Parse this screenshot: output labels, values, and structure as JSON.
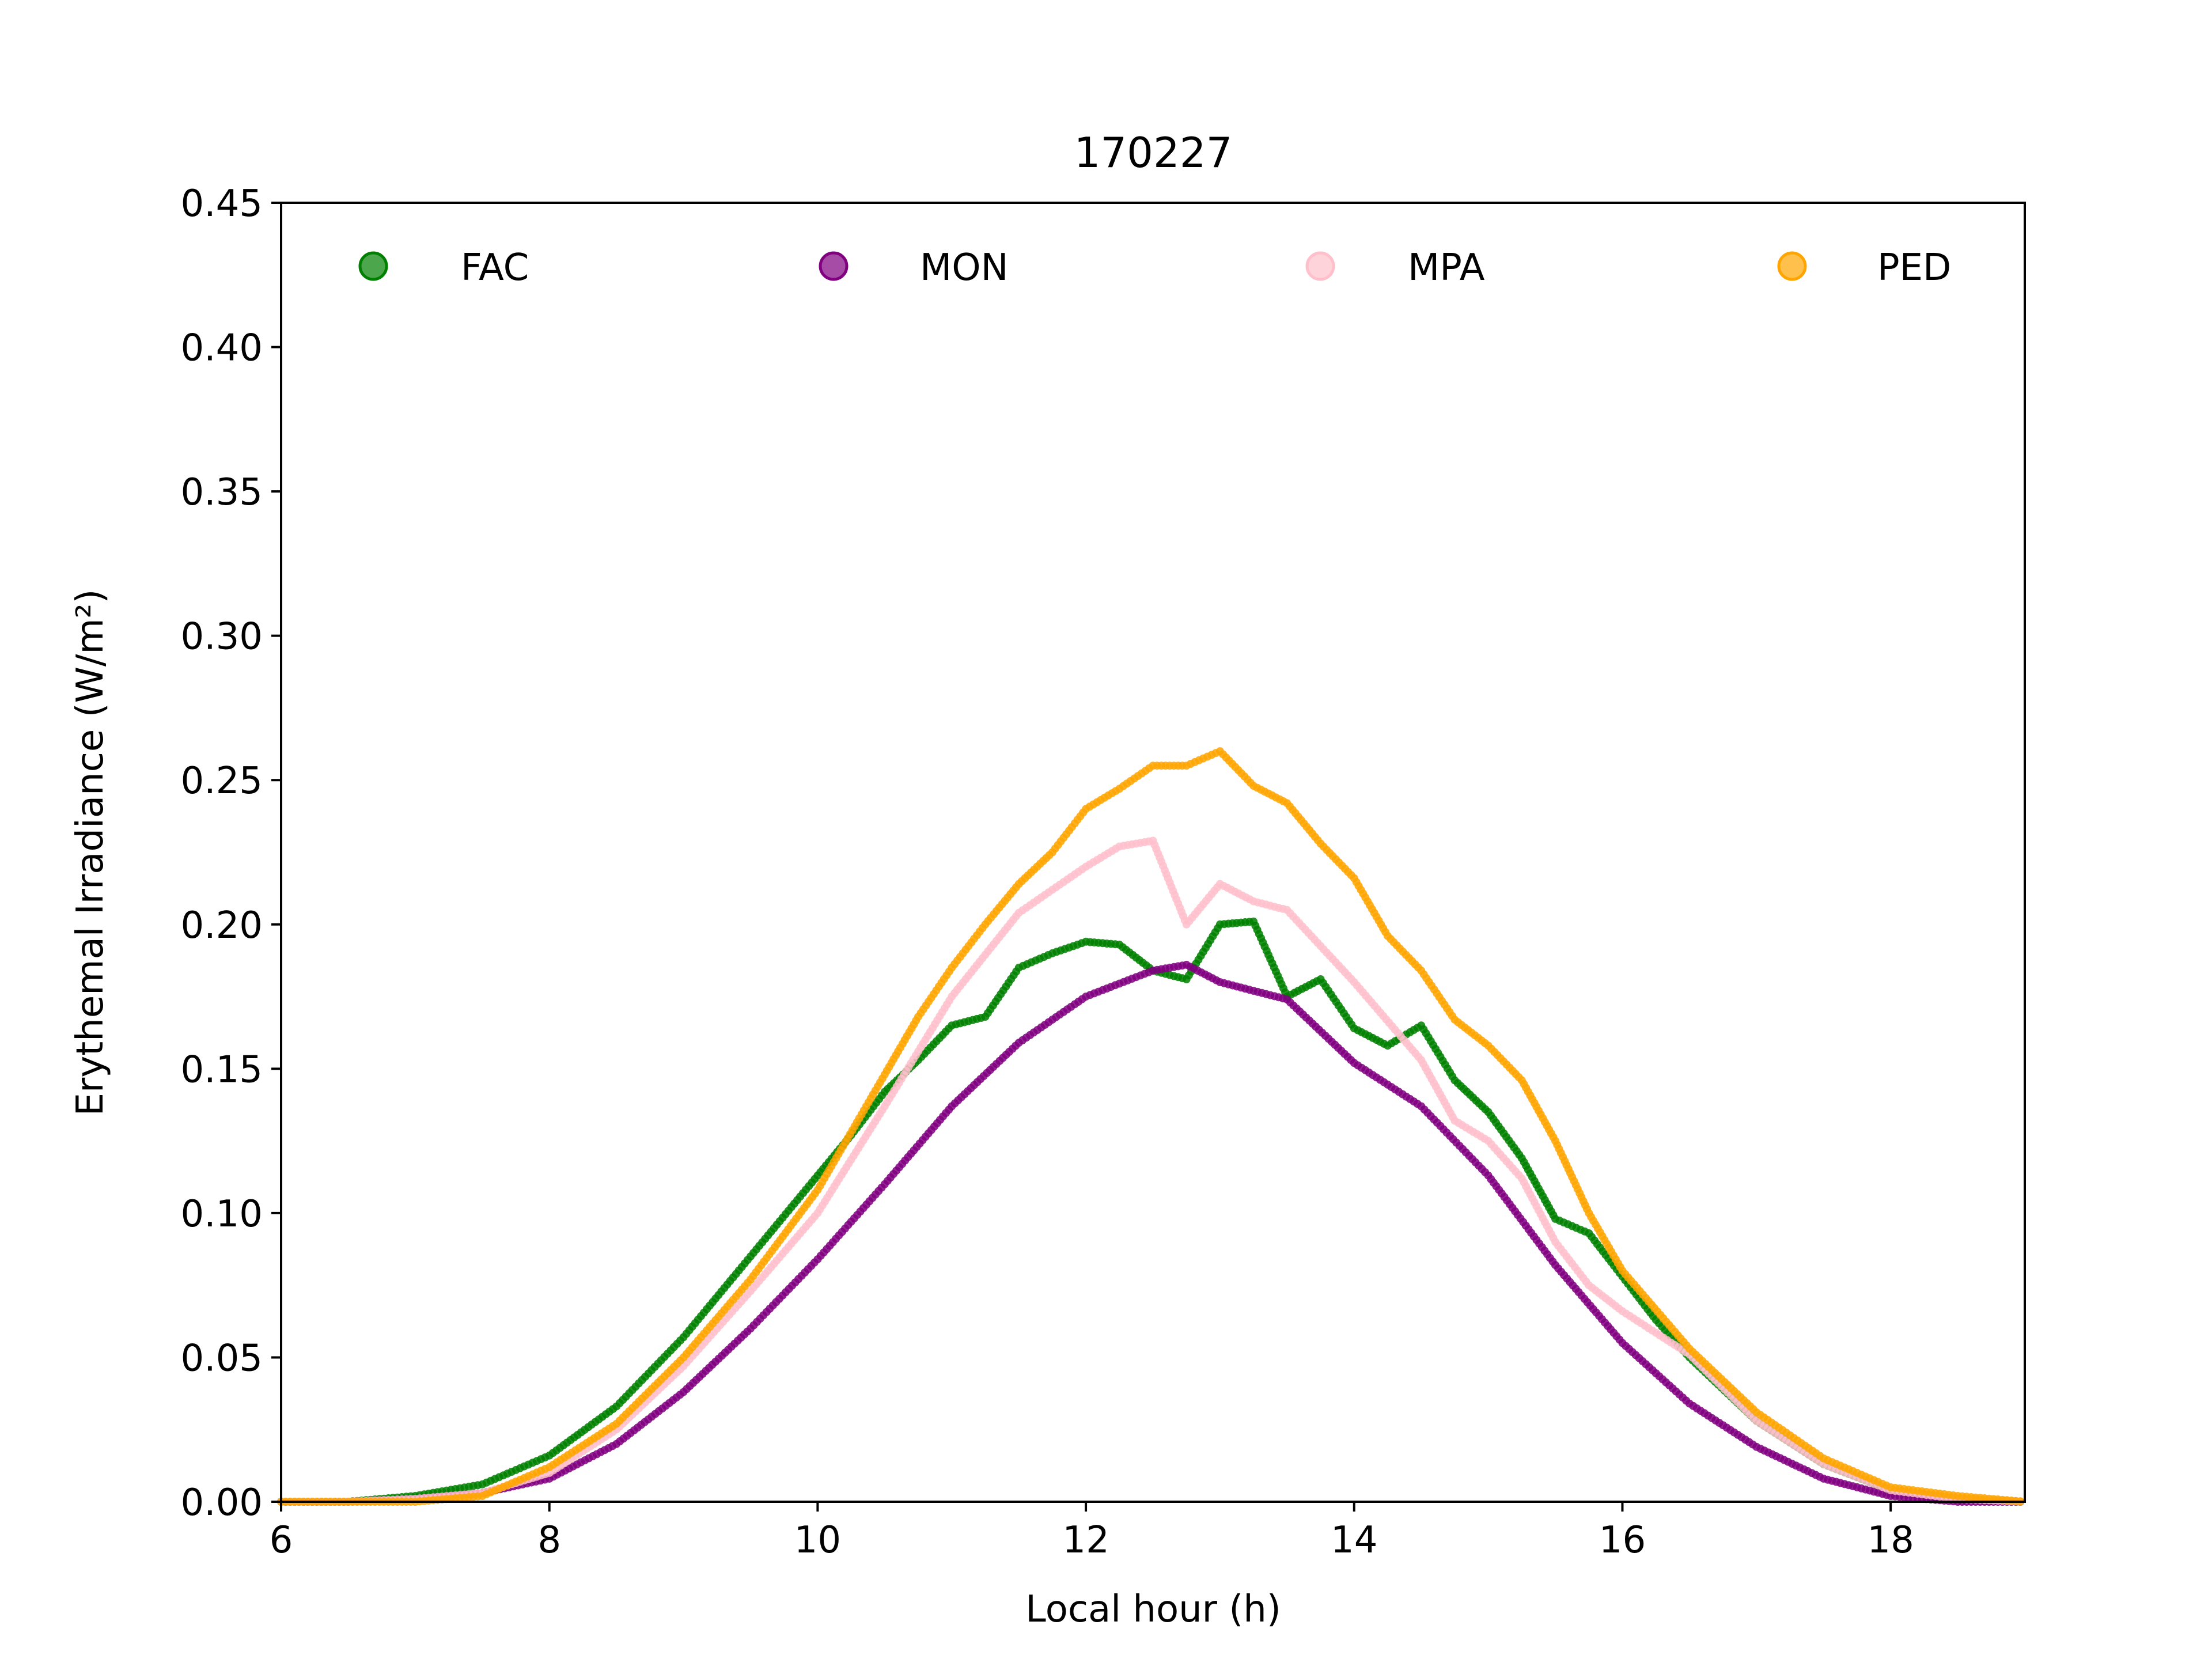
{
  "chart_data": {
    "type": "scatter",
    "title": "170227",
    "xlabel": "Local hour (h)",
    "ylabel": "Erythemal Irradiance (W/m²)",
    "xlim": [
      6,
      19
    ],
    "ylim": [
      0,
      0.45
    ],
    "xticks": [
      6,
      8,
      10,
      12,
      14,
      16,
      18
    ],
    "xtick_labels": [
      "6",
      "8",
      "10",
      "12",
      "14",
      "16",
      "18"
    ],
    "yticks": [
      0,
      0.05,
      0.1,
      0.15,
      0.2,
      0.25,
      0.3,
      0.35,
      0.4,
      0.45
    ],
    "ytick_labels": [
      "0.00",
      "0.05",
      "0.10",
      "0.15",
      "0.20",
      "0.25",
      "0.30",
      "0.35",
      "0.40",
      "0.45"
    ],
    "grid": false,
    "legend_position": "top",
    "series": [
      {
        "name": "FAC",
        "color": "#008000",
        "points": [
          [
            6,
            0
          ],
          [
            6.5,
            0
          ],
          [
            7,
            0.002
          ],
          [
            7.5,
            0.006
          ],
          [
            8,
            0.016
          ],
          [
            8.5,
            0.033
          ],
          [
            9,
            0.057
          ],
          [
            9.5,
            0.085
          ],
          [
            10,
            0.113
          ],
          [
            10.25,
            0.127
          ],
          [
            10.5,
            0.142
          ],
          [
            10.75,
            0.153
          ],
          [
            11,
            0.165
          ],
          [
            11.25,
            0.168
          ],
          [
            11.5,
            0.185
          ],
          [
            11.75,
            0.19
          ],
          [
            12,
            0.194
          ],
          [
            12.25,
            0.193
          ],
          [
            12.5,
            0.184
          ],
          [
            12.75,
            0.181
          ],
          [
            13,
            0.2
          ],
          [
            13.25,
            0.201
          ],
          [
            13.5,
            0.175
          ],
          [
            13.75,
            0.181
          ],
          [
            14,
            0.164
          ],
          [
            14.25,
            0.158
          ],
          [
            14.5,
            0.165
          ],
          [
            14.75,
            0.146
          ],
          [
            15,
            0.135
          ],
          [
            15.25,
            0.119
          ],
          [
            15.5,
            0.098
          ],
          [
            15.75,
            0.093
          ],
          [
            16,
            0.078
          ],
          [
            16.25,
            0.063
          ],
          [
            16.5,
            0.05
          ],
          [
            17,
            0.028
          ],
          [
            17.5,
            0.013
          ],
          [
            18,
            0.004
          ],
          [
            18.5,
            0.001
          ],
          [
            19,
            0
          ]
        ]
      },
      {
        "name": "MON",
        "color": "#800080",
        "points": [
          [
            6,
            0
          ],
          [
            6.5,
            0
          ],
          [
            7,
            0.001
          ],
          [
            7.5,
            0.003
          ],
          [
            8,
            0.008
          ],
          [
            8.5,
            0.02
          ],
          [
            9,
            0.038
          ],
          [
            9.5,
            0.06
          ],
          [
            10,
            0.084
          ],
          [
            10.5,
            0.11
          ],
          [
            11,
            0.137
          ],
          [
            11.5,
            0.159
          ],
          [
            12,
            0.175
          ],
          [
            12.5,
            0.184
          ],
          [
            12.75,
            0.186
          ],
          [
            13,
            0.18
          ],
          [
            13.5,
            0.174
          ],
          [
            14,
            0.152
          ],
          [
            14.5,
            0.137
          ],
          [
            15,
            0.113
          ],
          [
            15.5,
            0.082
          ],
          [
            16,
            0.055
          ],
          [
            16.5,
            0.034
          ],
          [
            17,
            0.019
          ],
          [
            17.5,
            0.008
          ],
          [
            18,
            0.002
          ],
          [
            18.5,
            0
          ],
          [
            19,
            0
          ]
        ]
      },
      {
        "name": "MPA",
        "color": "#ffc0cb",
        "points": [
          [
            6,
            0
          ],
          [
            6.5,
            0
          ],
          [
            7,
            0.001
          ],
          [
            7.5,
            0.003
          ],
          [
            8,
            0.01
          ],
          [
            8.5,
            0.025
          ],
          [
            9,
            0.047
          ],
          [
            9.5,
            0.073
          ],
          [
            10,
            0.1
          ],
          [
            10.5,
            0.137
          ],
          [
            11,
            0.175
          ],
          [
            11.5,
            0.204
          ],
          [
            12,
            0.22
          ],
          [
            12.25,
            0.227
          ],
          [
            12.5,
            0.229
          ],
          [
            12.75,
            0.2
          ],
          [
            13,
            0.214
          ],
          [
            13.25,
            0.208
          ],
          [
            13.5,
            0.205
          ],
          [
            14,
            0.18
          ],
          [
            14.5,
            0.153
          ],
          [
            14.75,
            0.132
          ],
          [
            15,
            0.125
          ],
          [
            15.25,
            0.112
          ],
          [
            15.5,
            0.09
          ],
          [
            15.75,
            0.075
          ],
          [
            16,
            0.066
          ],
          [
            16.5,
            0.051
          ],
          [
            17,
            0.028
          ],
          [
            17.5,
            0.013
          ],
          [
            18,
            0.004
          ],
          [
            18.5,
            0.001
          ],
          [
            19,
            0
          ]
        ]
      },
      {
        "name": "PED",
        "color": "#ffa500",
        "points": [
          [
            6,
            0
          ],
          [
            6.5,
            0
          ],
          [
            7,
            0
          ],
          [
            7.5,
            0.002
          ],
          [
            8,
            0.012
          ],
          [
            8.5,
            0.027
          ],
          [
            9,
            0.05
          ],
          [
            9.5,
            0.077
          ],
          [
            10,
            0.108
          ],
          [
            10.5,
            0.148
          ],
          [
            10.75,
            0.168
          ],
          [
            11,
            0.185
          ],
          [
            11.25,
            0.2
          ],
          [
            11.5,
            0.214
          ],
          [
            11.75,
            0.225
          ],
          [
            12,
            0.24
          ],
          [
            12.25,
            0.247
          ],
          [
            12.5,
            0.255
          ],
          [
            12.75,
            0.255
          ],
          [
            13,
            0.26
          ],
          [
            13.25,
            0.248
          ],
          [
            13.5,
            0.242
          ],
          [
            13.75,
            0.228
          ],
          [
            14,
            0.216
          ],
          [
            14.25,
            0.196
          ],
          [
            14.5,
            0.184
          ],
          [
            14.75,
            0.167
          ],
          [
            15,
            0.158
          ],
          [
            15.25,
            0.146
          ],
          [
            15.5,
            0.125
          ],
          [
            15.75,
            0.1
          ],
          [
            16,
            0.08
          ],
          [
            16.5,
            0.053
          ],
          [
            17,
            0.031
          ],
          [
            17.5,
            0.015
          ],
          [
            18,
            0.005
          ],
          [
            18.5,
            0.002
          ],
          [
            19,
            0
          ]
        ]
      }
    ]
  }
}
